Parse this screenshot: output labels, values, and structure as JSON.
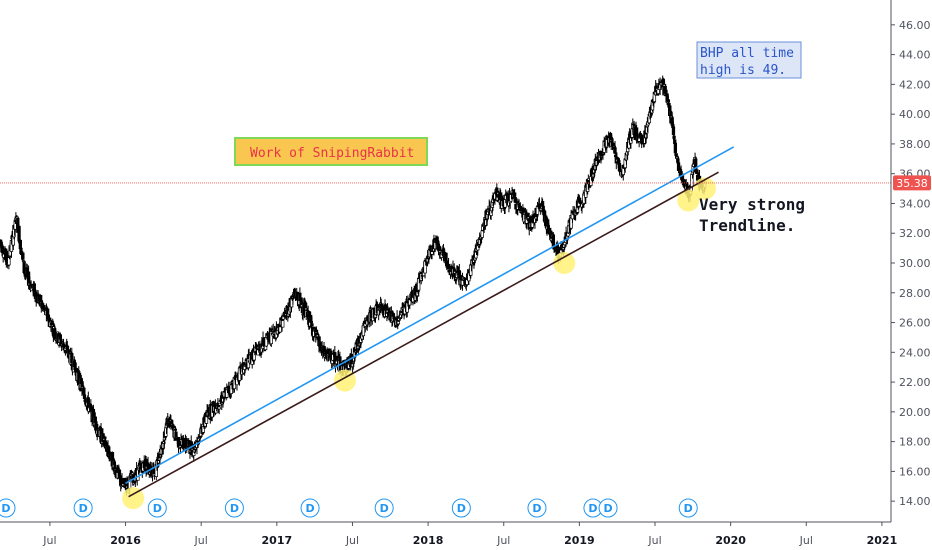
{
  "chart_data": {
    "type": "candlestick",
    "y_axis": {
      "range": [
        12.6,
        47.4
      ],
      "ticks": [
        "14.00",
        "16.00",
        "18.00",
        "20.00",
        "22.00",
        "24.00",
        "26.00",
        "28.00",
        "30.00",
        "32.00",
        "34.00",
        "36.00",
        "38.00",
        "40.00",
        "42.00",
        "44.00",
        "46.00"
      ],
      "position": "right"
    },
    "x_axis": {
      "ticks": [
        {
          "label": "Jul",
          "t": 2015.5,
          "year": false
        },
        {
          "label": "2016",
          "t": 2016.0,
          "year": true
        },
        {
          "label": "Jul",
          "t": 2016.5,
          "year": false
        },
        {
          "label": "2017",
          "t": 2017.0,
          "year": true
        },
        {
          "label": "Jul",
          "t": 2017.5,
          "year": false
        },
        {
          "label": "2018",
          "t": 2018.0,
          "year": true
        },
        {
          "label": "Jul",
          "t": 2018.5,
          "year": false
        },
        {
          "label": "2019",
          "t": 2019.0,
          "year": true
        },
        {
          "label": "Jul",
          "t": 2019.5,
          "year": false
        },
        {
          "label": "2020",
          "t": 2020.0,
          "year": true
        },
        {
          "label": "Jul",
          "t": 2020.5,
          "year": false
        },
        {
          "label": "2021",
          "t": 2021.0,
          "year": true
        }
      ],
      "range": [
        2015.17,
        2021.06
      ]
    },
    "price_path": [
      [
        2015.17,
        31.5
      ],
      [
        2015.22,
        30.0
      ],
      [
        2015.28,
        33.0
      ],
      [
        2015.33,
        29.5
      ],
      [
        2015.4,
        28.0
      ],
      [
        2015.48,
        26.5
      ],
      [
        2015.55,
        25.0
      ],
      [
        2015.62,
        24.0
      ],
      [
        2015.68,
        22.5
      ],
      [
        2015.75,
        20.5
      ],
      [
        2015.83,
        18.5
      ],
      [
        2015.9,
        17.0
      ],
      [
        2015.98,
        15.0
      ],
      [
        2016.05,
        15.5
      ],
      [
        2016.12,
        16.5
      ],
      [
        2016.2,
        16.0
      ],
      [
        2016.28,
        19.5
      ],
      [
        2016.35,
        18.0
      ],
      [
        2016.45,
        17.5
      ],
      [
        2016.55,
        20.0
      ],
      [
        2016.65,
        21.0
      ],
      [
        2016.75,
        22.5
      ],
      [
        2016.82,
        23.5
      ],
      [
        2016.9,
        24.5
      ],
      [
        2017.0,
        25.5
      ],
      [
        2017.08,
        27.0
      ],
      [
        2017.12,
        28.0
      ],
      [
        2017.2,
        26.5
      ],
      [
        2017.3,
        24.0
      ],
      [
        2017.38,
        23.5
      ],
      [
        2017.45,
        23.0
      ],
      [
        2017.5,
        23.5
      ],
      [
        2017.55,
        25.0
      ],
      [
        2017.62,
        26.5
      ],
      [
        2017.7,
        27.0
      ],
      [
        2017.78,
        26.0
      ],
      [
        2017.85,
        27.0
      ],
      [
        2017.92,
        28.0
      ],
      [
        2018.0,
        30.5
      ],
      [
        2018.05,
        31.5
      ],
      [
        2018.12,
        30.0
      ],
      [
        2018.2,
        29.0
      ],
      [
        2018.25,
        28.5
      ],
      [
        2018.32,
        31.0
      ],
      [
        2018.38,
        33.0
      ],
      [
        2018.45,
        34.5
      ],
      [
        2018.5,
        34.0
      ],
      [
        2018.55,
        34.5
      ],
      [
        2018.62,
        33.5
      ],
      [
        2018.68,
        32.5
      ],
      [
        2018.75,
        34.0
      ],
      [
        2018.8,
        32.0
      ],
      [
        2018.87,
        30.5
      ],
      [
        2018.95,
        33.0
      ],
      [
        2019.05,
        35.0
      ],
      [
        2019.12,
        37.0
      ],
      [
        2019.2,
        38.5
      ],
      [
        2019.28,
        36.0
      ],
      [
        2019.35,
        39.0
      ],
      [
        2019.42,
        38.0
      ],
      [
        2019.5,
        41.5
      ],
      [
        2019.55,
        42.0
      ],
      [
        2019.58,
        41.0
      ],
      [
        2019.62,
        39.0
      ],
      [
        2019.65,
        36.5
      ],
      [
        2019.7,
        35.0
      ],
      [
        2019.73,
        34.8
      ],
      [
        2019.76,
        37.0
      ],
      [
        2019.8,
        35.0
      ],
      [
        2019.83,
        35.38
      ]
    ],
    "current_price": {
      "label": "35.38",
      "value": 35.38,
      "color": "#ef5350"
    },
    "trendlines": [
      {
        "name": "blue",
        "color": "#2196f3",
        "from": [
          2016.0,
          15.2
        ],
        "to": [
          2020.02,
          37.8
        ]
      },
      {
        "name": "dark",
        "color": "#3b1a1a",
        "from": [
          2016.02,
          14.3
        ],
        "to": [
          2019.92,
          36.1
        ]
      }
    ],
    "touch_points": [
      {
        "t": 2016.05,
        "v": 14.2
      },
      {
        "t": 2017.45,
        "v": 22.1
      },
      {
        "t": 2018.9,
        "v": 30.0
      },
      {
        "t": 2019.72,
        "v": 34.2
      },
      {
        "t": 2019.83,
        "v": 35.0
      }
    ],
    "dividend_markers": [
      2015.17,
      2015.68,
      2016.17,
      2016.68,
      2017.18,
      2017.67,
      2018.18,
      2018.68,
      2019.05,
      2019.15,
      2019.68
    ],
    "dividend_label": "D",
    "annotations": {
      "work_label": "Work of SnipingRabbit",
      "ath_line1": "BHP all time",
      "ath_line2": "high is 49.",
      "trend_line1": "Very strong",
      "trend_line2": "Trendline."
    },
    "colors": {
      "candle_up": "#ffffff",
      "candle_down": "#000000",
      "candle_outline": "#000000",
      "work_bg": "#f9c74f",
      "work_border": "#7ed957",
      "work_text": "#e8334a",
      "ath_bg": "#dde6f7",
      "ath_border": "#6a8fd8",
      "ath_text": "#2a55c9",
      "touch": "#fff176"
    }
  }
}
